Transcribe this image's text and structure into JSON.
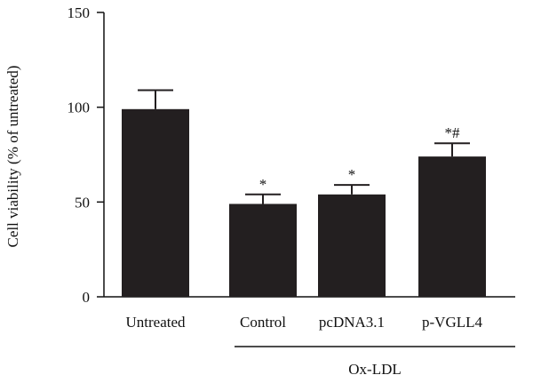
{
  "chart_data": {
    "type": "bar",
    "categories": [
      "Untreated",
      "Control",
      "pcDNA3.1",
      "p-VGLL4"
    ],
    "values": [
      99,
      49,
      54,
      74
    ],
    "errors": [
      10,
      5,
      5,
      7
    ],
    "annotations": [
      "",
      "*",
      "*",
      "*#"
    ],
    "ylabel": "Cell viability (% of untreated)",
    "xlabel": "",
    "ylim": [
      0,
      150
    ],
    "yticks": [
      "0",
      "50",
      "100",
      "150"
    ],
    "group_label": "Ox-LDL",
    "group_categories": [
      "Control",
      "pcDNA3.1",
      "p-VGLL4"
    ],
    "bar_color": "#231f20",
    "legend": false,
    "grid": false
  }
}
